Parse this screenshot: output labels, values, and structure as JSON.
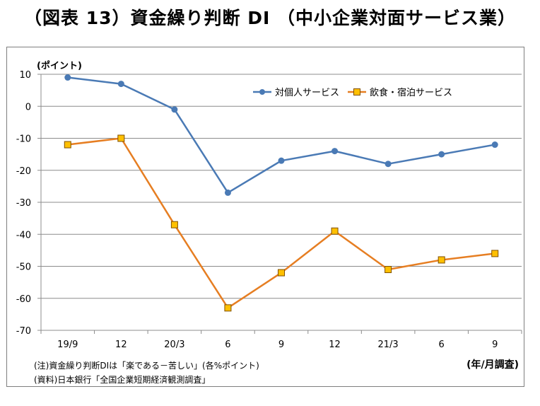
{
  "title": "（図表 13）資金繰り判断 DI （中小企業対面サービス業）",
  "notes": {
    "note1": "(注)資金繰り判断DIは「楽である－苦しい」(各%ポイント)",
    "note2": "(資料)日本銀行「全国企業短期経済観測調査」"
  },
  "chart_data": {
    "type": "line",
    "categories": [
      "19/9",
      "12",
      "20/3",
      "6",
      "9",
      "12",
      "21/3",
      "6",
      "9"
    ],
    "ylabel": "(ポイント)",
    "xlabel": "(年/月調査)",
    "ylim": [
      -70,
      10
    ],
    "yticks": [
      10,
      0,
      -10,
      -20,
      -30,
      -40,
      -50,
      -60,
      -70
    ],
    "grid": true,
    "legend_position": "top-right",
    "series": [
      {
        "name": "対個人サービス",
        "color": "#4a7ab5",
        "marker": "circle",
        "values": [
          9,
          7,
          -1,
          -27,
          -17,
          -14,
          -18,
          -15,
          -12
        ]
      },
      {
        "name": "飲食・宿泊サービス",
        "color": "#e67e22",
        "marker": "square",
        "values": [
          -12,
          -10,
          -37,
          -63,
          -52,
          -39,
          -51,
          -48,
          -46
        ]
      }
    ]
  }
}
